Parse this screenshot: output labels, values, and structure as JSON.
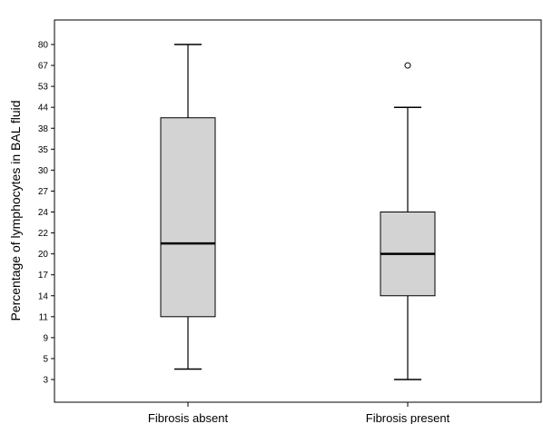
{
  "chart_data": {
    "type": "box",
    "title": "",
    "xlabel": "",
    "ylabel": "Percentage of lymphocytes in BAL fluid",
    "y_ticks": [
      "3",
      "5",
      "9",
      "11",
      "14",
      "17",
      "20",
      "22",
      "24",
      "27",
      "30",
      "35",
      "38",
      "44",
      "53",
      "67",
      "80"
    ],
    "grid": false,
    "categories": [
      "Fibrosis absent",
      "Fibrosis present"
    ],
    "boxes": [
      {
        "category": "Fibrosis absent",
        "whisker_low": "4",
        "q1": "11",
        "median": "21",
        "q3": "41",
        "whisker_high": "80",
        "outliers": []
      },
      {
        "category": "Fibrosis present",
        "whisker_low": "3",
        "q1": "14",
        "median": "20",
        "q3": "24",
        "whisker_high": "44",
        "outliers": [
          "67"
        ]
      }
    ],
    "colors": {
      "box_fill": "#d3d3d3",
      "stroke": "#000000",
      "background": "#ffffff"
    }
  }
}
